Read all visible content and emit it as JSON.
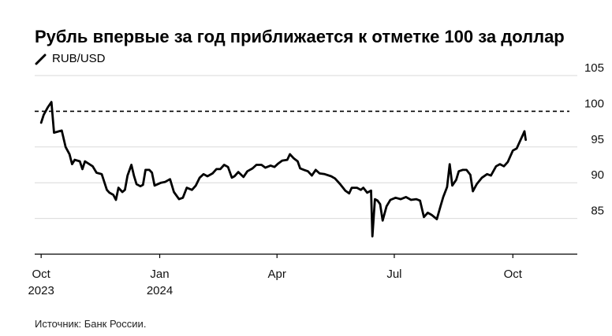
{
  "title": "Рубль впервые за год приближается к отметке 100 за доллар",
  "legend": {
    "series_label": "RUB/USD",
    "line_color": "#000000"
  },
  "source": "Источник: Банк России.",
  "chart_data": {
    "type": "line",
    "title": "Рубль впервые за год приближается к отметке 100 за доллар",
    "xlabel": "",
    "ylabel": "",
    "ylim": [
      80,
      105
    ],
    "yticks": [
      85,
      90,
      95,
      100,
      105
    ],
    "ytick_labels": [
      "85",
      "90",
      "95",
      "100",
      "105"
    ],
    "xlim": [
      "2023-09-26",
      "2024-11-20"
    ],
    "xticks": [
      "2023-10-01",
      "2024-01-01",
      "2024-04-01",
      "2024-07-01",
      "2024-10-01"
    ],
    "xtick_labels": [
      [
        "Oct",
        "2023"
      ],
      [
        "Jan",
        "2024"
      ],
      [
        "Apr",
        ""
      ],
      [
        "Jul",
        ""
      ],
      [
        "Oct",
        ""
      ]
    ],
    "grid": "horizontal",
    "reference_line": {
      "value": 100,
      "style": "dashed"
    },
    "series": [
      {
        "name": "RUB/USD",
        "color": "#000000",
        "points": [
          [
            "2023-10-01",
            98.4
          ],
          [
            "2023-10-03",
            99.5
          ],
          [
            "2023-10-06",
            100.5
          ],
          [
            "2023-10-09",
            101.3
          ],
          [
            "2023-10-11",
            97.0
          ],
          [
            "2023-10-17",
            97.3
          ],
          [
            "2023-10-20",
            95.0
          ],
          [
            "2023-10-23",
            94.0
          ],
          [
            "2023-10-25",
            92.6
          ],
          [
            "2023-10-27",
            93.2
          ],
          [
            "2023-10-31",
            93.0
          ],
          [
            "2023-11-02",
            91.9
          ],
          [
            "2023-11-04",
            93.0
          ],
          [
            "2023-11-10",
            92.3
          ],
          [
            "2023-11-13",
            91.4
          ],
          [
            "2023-11-17",
            91.2
          ],
          [
            "2023-11-21",
            89.0
          ],
          [
            "2023-11-23",
            88.6
          ],
          [
            "2023-11-26",
            88.3
          ],
          [
            "2023-11-28",
            87.6
          ],
          [
            "2023-11-30",
            89.3
          ],
          [
            "2023-12-03",
            88.7
          ],
          [
            "2023-12-05",
            89.0
          ],
          [
            "2023-12-07",
            91.0
          ],
          [
            "2023-12-10",
            92.5
          ],
          [
            "2023-12-12",
            91.0
          ],
          [
            "2023-12-14",
            89.8
          ],
          [
            "2023-12-17",
            89.5
          ],
          [
            "2023-12-19",
            89.7
          ],
          [
            "2023-12-21",
            91.8
          ],
          [
            "2023-12-24",
            91.8
          ],
          [
            "2023-12-26",
            91.4
          ],
          [
            "2023-12-28",
            89.6
          ],
          [
            "2024-01-02",
            90.0
          ],
          [
            "2024-01-05",
            90.1
          ],
          [
            "2024-01-09",
            90.5
          ],
          [
            "2024-01-12",
            88.7
          ],
          [
            "2024-01-16",
            87.7
          ],
          [
            "2024-01-19",
            87.9
          ],
          [
            "2024-01-22",
            89.3
          ],
          [
            "2024-01-26",
            89.0
          ],
          [
            "2024-01-29",
            89.6
          ],
          [
            "2024-02-01",
            90.7
          ],
          [
            "2024-02-04",
            91.2
          ],
          [
            "2024-02-07",
            90.9
          ],
          [
            "2024-02-11",
            91.3
          ],
          [
            "2024-02-14",
            91.9
          ],
          [
            "2024-02-17",
            91.9
          ],
          [
            "2024-02-20",
            92.5
          ],
          [
            "2024-02-23",
            92.2
          ],
          [
            "2024-02-26",
            90.7
          ],
          [
            "2024-02-28",
            90.9
          ],
          [
            "2024-03-02",
            91.5
          ],
          [
            "2024-03-06",
            90.8
          ],
          [
            "2024-03-09",
            91.6
          ],
          [
            "2024-03-13",
            92.0
          ],
          [
            "2024-03-16",
            92.5
          ],
          [
            "2024-03-20",
            92.5
          ],
          [
            "2024-03-23",
            92.1
          ],
          [
            "2024-03-27",
            92.4
          ],
          [
            "2024-03-30",
            92.2
          ],
          [
            "2024-04-02",
            92.7
          ],
          [
            "2024-04-05",
            93.1
          ],
          [
            "2024-04-09",
            93.2
          ],
          [
            "2024-04-11",
            94.0
          ],
          [
            "2024-04-14",
            93.4
          ],
          [
            "2024-04-17",
            93.0
          ],
          [
            "2024-04-19",
            92.0
          ],
          [
            "2024-04-22",
            91.8
          ],
          [
            "2024-04-25",
            91.6
          ],
          [
            "2024-04-28",
            91.0
          ],
          [
            "2024-05-01",
            91.8
          ],
          [
            "2024-05-04",
            91.3
          ],
          [
            "2024-05-08",
            91.2
          ],
          [
            "2024-05-13",
            90.9
          ],
          [
            "2024-05-16",
            90.6
          ],
          [
            "2024-05-20",
            89.8
          ],
          [
            "2024-05-24",
            88.9
          ],
          [
            "2024-05-27",
            88.5
          ],
          [
            "2024-05-29",
            89.3
          ],
          [
            "2024-06-02",
            89.3
          ],
          [
            "2024-06-05",
            89.0
          ],
          [
            "2024-06-07",
            89.3
          ],
          [
            "2024-06-10",
            88.6
          ],
          [
            "2024-06-13",
            88.9
          ],
          [
            "2024-06-14",
            82.5
          ],
          [
            "2024-06-16",
            87.7
          ],
          [
            "2024-06-18",
            87.5
          ],
          [
            "2024-06-20",
            87.0
          ],
          [
            "2024-06-22",
            84.7
          ],
          [
            "2024-06-25",
            86.7
          ],
          [
            "2024-06-28",
            87.6
          ],
          [
            "2024-07-02",
            87.9
          ],
          [
            "2024-07-06",
            87.7
          ],
          [
            "2024-07-10",
            88.0
          ],
          [
            "2024-07-14",
            87.6
          ],
          [
            "2024-07-18",
            87.7
          ],
          [
            "2024-07-21",
            87.5
          ],
          [
            "2024-07-24",
            85.2
          ],
          [
            "2024-07-27",
            85.8
          ],
          [
            "2024-07-30",
            85.5
          ],
          [
            "2024-08-03",
            84.9
          ],
          [
            "2024-08-06",
            86.8
          ],
          [
            "2024-08-08",
            88.0
          ],
          [
            "2024-08-11",
            89.4
          ],
          [
            "2024-08-13",
            92.6
          ],
          [
            "2024-08-15",
            89.6
          ],
          [
            "2024-08-18",
            90.4
          ],
          [
            "2024-08-20",
            91.6
          ],
          [
            "2024-08-23",
            91.8
          ],
          [
            "2024-08-26",
            91.8
          ],
          [
            "2024-08-29",
            91.1
          ],
          [
            "2024-08-31",
            88.8
          ],
          [
            "2024-09-03",
            89.8
          ],
          [
            "2024-09-07",
            90.7
          ],
          [
            "2024-09-11",
            91.2
          ],
          [
            "2024-09-14",
            91.0
          ],
          [
            "2024-09-18",
            92.3
          ],
          [
            "2024-09-21",
            92.6
          ],
          [
            "2024-09-24",
            92.3
          ],
          [
            "2024-09-27",
            92.9
          ],
          [
            "2024-10-01",
            94.5
          ],
          [
            "2024-10-04",
            94.8
          ],
          [
            "2024-10-07",
            96.0
          ],
          [
            "2024-10-09",
            96.8
          ],
          [
            "2024-10-10",
            97.2
          ],
          [
            "2024-10-11",
            96.0
          ]
        ]
      }
    ]
  }
}
